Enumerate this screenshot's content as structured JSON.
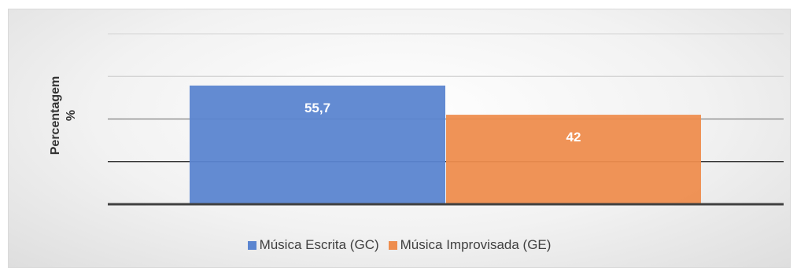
{
  "chart_data": {
    "type": "bar",
    "title": "",
    "xlabel": "",
    "ylabel": "Percentagem %",
    "ylim": [
      0,
      80
    ],
    "categories": [
      "Música Escrita (GC)",
      "Música Improvisada (GE)"
    ],
    "values": [
      55.7,
      42
    ],
    "value_labels": [
      "55,7",
      "42"
    ],
    "colors": [
      "#5b85d0",
      "#ee8d4e"
    ],
    "grid": true,
    "legend": "bottom"
  },
  "legend": {
    "items": [
      {
        "label": "Música Escrita (GC)",
        "color": "#5b85d0"
      },
      {
        "label": "Música Improvisada (GE)",
        "color": "#ee8d4e"
      }
    ]
  }
}
